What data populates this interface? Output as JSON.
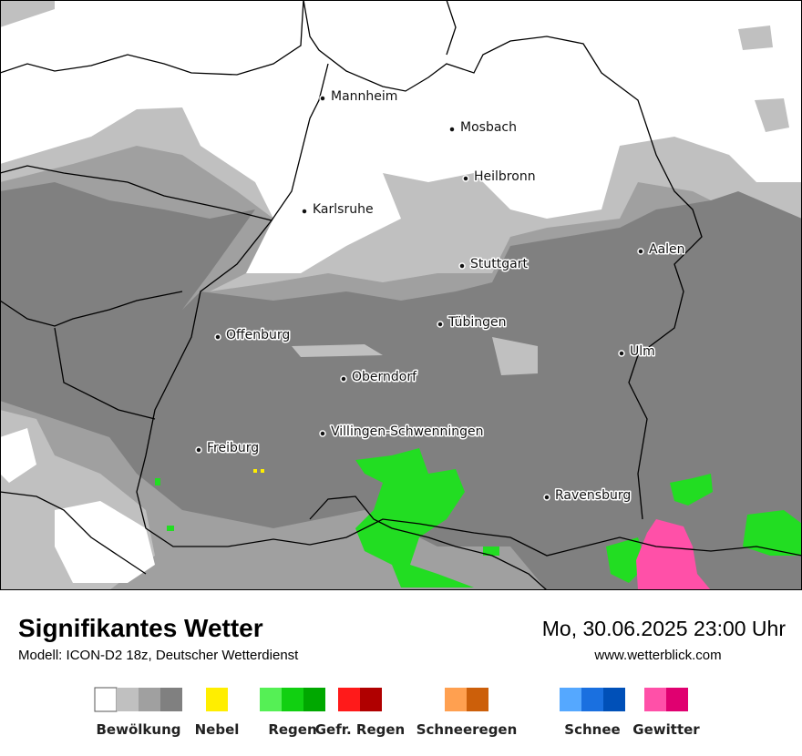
{
  "map": {
    "cities": [
      "Mannheim",
      "Mosbach",
      "Heilbronn",
      "Karlsruhe",
      "Stuttgart",
      "Aalen",
      "Tübingen",
      "Offenburg",
      "Ulm",
      "Oberndorf",
      "Villingen-Schwenningen",
      "Freiburg",
      "Ravensburg"
    ]
  },
  "footer": {
    "title": "Signifikantes Wetter",
    "model": "Modell: ICON-D2 18z, Deutscher Wetterdienst",
    "datetime": "Mo, 30.06.2025 23:00 Uhr",
    "website": "www.wetterblick.com"
  },
  "legend": [
    {
      "label": "Bewölkung",
      "colors": [
        "#ffffff",
        "#c0c0c0",
        "#a0a0a0",
        "#808080"
      ]
    },
    {
      "label": "Nebel",
      "colors": [
        "#ffee00"
      ]
    },
    {
      "label": "Regen",
      "colors": [
        "#55f055",
        "#11d011",
        "#00a800"
      ]
    },
    {
      "label": "Gefr. Regen",
      "colors": [
        "#ff1a1a",
        "#b00000"
      ]
    },
    {
      "label": "Schneeregen",
      "colors": [
        "#ffa050",
        "#cc5f0a"
      ]
    },
    {
      "label": "Schnee",
      "colors": [
        "#55a8ff",
        "#1a70e0",
        "#0050b8"
      ]
    },
    {
      "label": "Gewitter",
      "colors": [
        "#ff50a8",
        "#e00070"
      ]
    }
  ]
}
